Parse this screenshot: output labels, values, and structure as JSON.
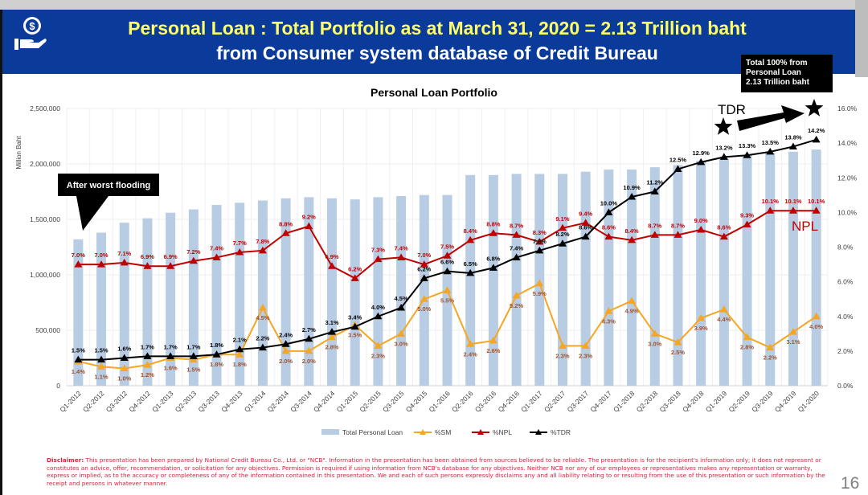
{
  "header": {
    "title_line1": "Personal Loan : Total Portfolio as at March 31, 2020 = 2.13 Trillion baht",
    "title_line2": "from Consumer system database of Credit Bureau",
    "logo_icon": "hand-money-icon"
  },
  "annotations": {
    "total_box": [
      "Total 100% from",
      "Personal Loan",
      "2.13 Trillion baht"
    ],
    "flooding": "After worst flooding",
    "tdr": "TDR",
    "npl": "NPL"
  },
  "chart_data": {
    "type": "bar+line",
    "title": "Personal Loan Portfolio",
    "ylabel": "Million Baht",
    "ylim": [
      0,
      2500000
    ],
    "y_ticks": [
      "0",
      "500,000",
      "1,000,000",
      "1,500,000",
      "2,000,000",
      "2,500,000"
    ],
    "y2lim": [
      0,
      16
    ],
    "y2_ticks": [
      "0.0%",
      "2.0%",
      "4.0%",
      "6.0%",
      "8.0%",
      "10.0%",
      "12.0%",
      "14.0%",
      "16.0%"
    ],
    "categories": [
      "Q1-2012",
      "Q2-2012",
      "Q3-2012",
      "Q4-2012",
      "Q1-2013",
      "Q2-2013",
      "Q3-2013",
      "Q4-2013",
      "Q1-2014",
      "Q2-2014",
      "Q3-2014",
      "Q4-2014",
      "Q1-2015",
      "Q2-2015",
      "Q3-2015",
      "Q4-2015",
      "Q1-2016",
      "Q2-2016",
      "Q3-2016",
      "Q4-2016",
      "Q1-2017",
      "Q2-2017",
      "Q3-2017",
      "Q4-2017",
      "Q1-2018",
      "Q2-2018",
      "Q3-2018",
      "Q4-2018",
      "Q1-2019",
      "Q2-2019",
      "Q3-2019",
      "Q4-2019",
      "Q1-2020"
    ],
    "series": [
      {
        "name": "Total Personal Loan",
        "type": "bar",
        "axis": "left",
        "color": "#b8cce4",
        "values": [
          1320000,
          1380000,
          1470000,
          1510000,
          1560000,
          1590000,
          1630000,
          1650000,
          1670000,
          1690000,
          1700000,
          1690000,
          1680000,
          1700000,
          1710000,
          1720000,
          1720000,
          1900000,
          1900000,
          1910000,
          1910000,
          1910000,
          1930000,
          1950000,
          1950000,
          1970000,
          1990000,
          2030000,
          2050000,
          2080000,
          2100000,
          2110000,
          2130000
        ]
      },
      {
        "name": "%SM",
        "type": "line",
        "axis": "right",
        "color": "#f5a623",
        "label_color": "#a0522d",
        "values": [
          1.4,
          1.1,
          1.0,
          1.2,
          1.6,
          1.5,
          1.8,
          1.8,
          4.5,
          2.0,
          2.0,
          2.8,
          3.5,
          2.3,
          3.0,
          5.0,
          5.5,
          2.4,
          2.6,
          5.2,
          5.9,
          2.3,
          2.3,
          4.3,
          4.9,
          3.0,
          2.5,
          3.9,
          4.4,
          2.8,
          2.2,
          3.1,
          4.0
        ]
      },
      {
        "name": "%NPL",
        "type": "line",
        "axis": "right",
        "color": "#c00000",
        "label_color": "#c00000",
        "values": [
          7.0,
          7.0,
          7.1,
          6.9,
          6.9,
          7.2,
          7.4,
          7.7,
          7.8,
          8.8,
          9.2,
          6.9,
          6.2,
          7.3,
          7.4,
          7.0,
          7.5,
          8.4,
          8.8,
          8.7,
          8.3,
          9.1,
          9.4,
          8.6,
          8.4,
          8.7,
          8.7,
          9.0,
          8.6,
          9.3,
          10.1,
          10.1,
          10.1
        ]
      },
      {
        "name": "%TDR",
        "type": "line",
        "axis": "right",
        "color": "#000000",
        "label_color": "#000000",
        "values": [
          1.5,
          1.5,
          1.6,
          1.7,
          1.7,
          1.7,
          1.8,
          2.1,
          2.2,
          2.4,
          2.7,
          3.1,
          3.4,
          4.0,
          4.5,
          6.2,
          6.6,
          6.5,
          6.8,
          7.4,
          7.8,
          8.2,
          8.6,
          10.0,
          10.9,
          11.2,
          12.5,
          12.9,
          13.2,
          13.3,
          13.5,
          13.8,
          14.2
        ]
      }
    ],
    "legend": "bottom",
    "grid": true
  },
  "footer": {
    "disclaimer_label": "Disclaimer:",
    "disclaimer_text": " This presentation has been prepared by National Credit Bureau Co., Ltd. or \"NCB\". Information in the presentation has been obtained from sources believed to be reliable. The presentation is for the recipient's information only; it does not represent or constitutes an advice, offer, recommendation, or solicitation for any objectives. Permission is required if using information from NCB's database for any objectives. Neither NCB nor any of our employees or representatives makes any representation or warranty, express or implied, as to the accuracy or completeness of any of the information contained in this presentation. We and each of such persons expressly disclaims any and all liability relating to or resulting from the use of this presentation or such information by the receipt and persons in whatever manner.",
    "page_number": "16"
  }
}
